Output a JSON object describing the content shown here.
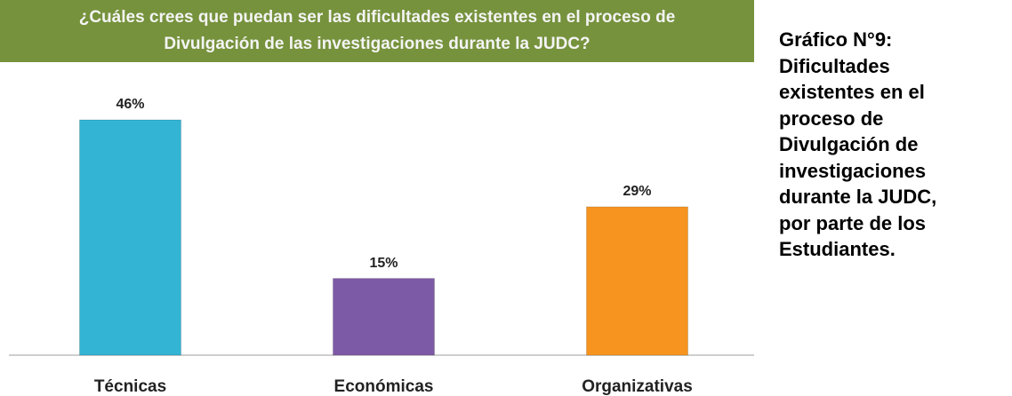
{
  "chart_data": {
    "type": "bar",
    "title": [
      "¿Cuáles crees que puedan ser las dificultades existentes en el proceso de",
      "Divulgación de las investigaciones durante la JUDC?"
    ],
    "categories": [
      "Técnicas",
      "Económicas",
      "Organizativas"
    ],
    "values": [
      46,
      15,
      29
    ],
    "value_labels": [
      "46%",
      "15%",
      "29%"
    ],
    "colors": [
      "#33b4d4",
      "#7d5aa6",
      "#f7941f"
    ]
  },
  "caption": [
    "Gráfico N°9:",
    "Dificultades",
    "existentes en el",
    "proceso de",
    "Divulgación de",
    "investigaciones",
    "durante la JUDC,",
    "por parte de los",
    "Estudiantes."
  ]
}
